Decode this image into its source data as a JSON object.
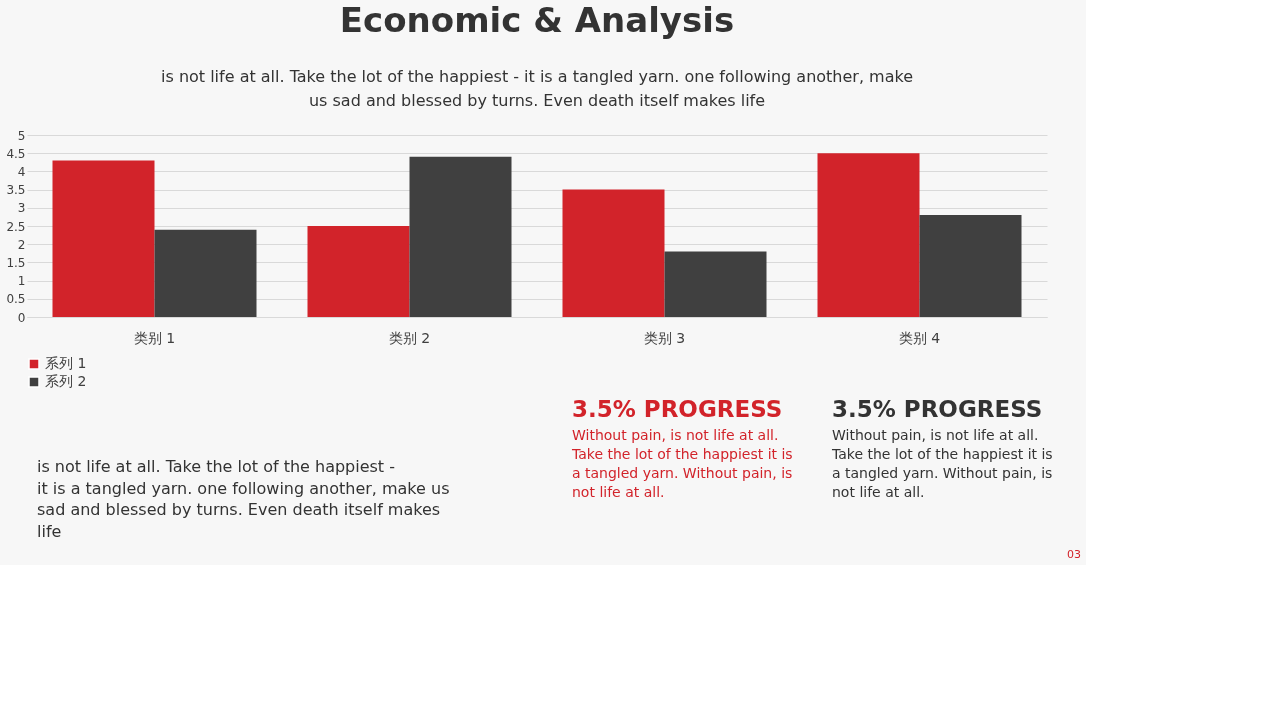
{
  "chart_data": {
    "type": "bar",
    "title": "Economic & Analysis",
    "subtitle": "is not life at all. Take the lot of the happiest - it is a tangled yarn. one following another, make us sad and blessed by turns. Even death itself makes life",
    "categories": [
      "类别 1",
      "类别 2",
      "类别 3",
      "类别 4"
    ],
    "series": [
      {
        "name": "系列 1",
        "color": "#d2232a",
        "values": [
          4.3,
          2.5,
          3.5,
          4.5
        ]
      },
      {
        "name": "系列 2",
        "color": "#404040",
        "values": [
          2.4,
          4.4,
          1.8,
          2.8
        ]
      }
    ],
    "ylim": [
      0,
      5
    ],
    "yticks": [
      0,
      0.5,
      1,
      1.5,
      2,
      2.5,
      3,
      3.5,
      4,
      4.5,
      5
    ],
    "grid": "y",
    "legend": "bottom left",
    "annotations": [
      "is not life at all. Take the lot of the happiest - it is a tangled yarn. one following another, make us sad and blessed by turns. Even death itself makes life",
      "3.5% PROGRESS",
      "Without pain, is not life at all. Take the lot of the happiest it is a tangled yarn. Without pain, is not life at all.",
      "3.5% PROGRESS",
      "Without pain, is not life at all. Take the lot of the happiest it is a tangled yarn. Without pain, is not life at all.",
      "03"
    ]
  }
}
